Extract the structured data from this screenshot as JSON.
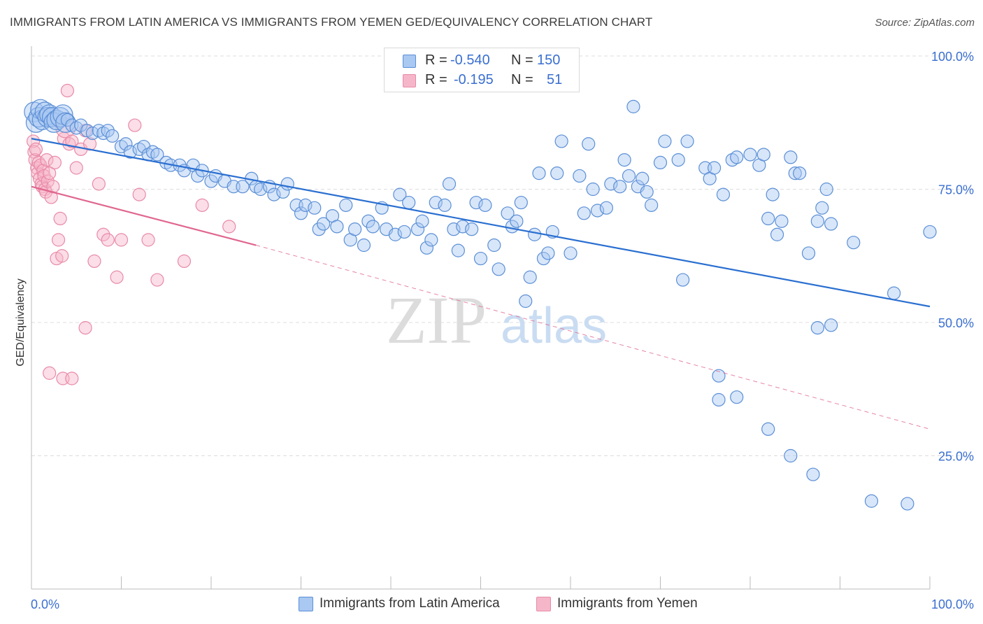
{
  "title": "IMMIGRANTS FROM LATIN AMERICA VS IMMIGRANTS FROM YEMEN GED/EQUIVALENCY CORRELATION CHART",
  "source": "Source: ZipAtlas.com",
  "watermark": {
    "zip": "ZIP",
    "atlas": "atlas"
  },
  "colors": {
    "blue_fill": "#a9c8f2",
    "blue_stroke": "#5b8fd6",
    "blue_line": "#2a6fd1",
    "pink_fill": "#f6b6ca",
    "pink_stroke": "#e98aa8",
    "pink_line": "#e0668e",
    "tick_label": "#3a6fd0",
    "grid": "#dddddd"
  },
  "legend": {
    "rows": [
      {
        "r_label": "R =",
        "r_value": "-0.540",
        "n_label": "N =",
        "n_value": "150"
      },
      {
        "r_label": "R =",
        "r_value": "-0.195",
        "n_label": "N =",
        "n_value": "51"
      }
    ]
  },
  "bottom_legend": [
    "Immigrants from Latin America",
    "Immigrants from Yemen"
  ],
  "chart_data": {
    "type": "scatter",
    "title": "IMMIGRANTS FROM LATIN AMERICA VS IMMIGRANTS FROM YEMEN GED/EQUIVALENCY CORRELATION CHART",
    "xlabel": "",
    "ylabel": "GED/Equivalency",
    "xlim": [
      0,
      100
    ],
    "ylim": [
      0,
      100
    ],
    "x_tick_labels": [
      "0.0%",
      "100.0%"
    ],
    "y_ticks": [
      25,
      50,
      75,
      100
    ],
    "y_tick_labels": [
      "25.0%",
      "50.0%",
      "75.0%",
      "100.0%"
    ],
    "grid": true,
    "legend_placement": "top-center",
    "series": [
      {
        "name": "Immigrants from Latin America",
        "color": "#a9c8f2",
        "r": -0.54,
        "n": 150,
        "trend": {
          "x": [
            0,
            100
          ],
          "y": [
            84.5,
            53.0
          ]
        },
        "points": [
          [
            0.3,
            89.5
          ],
          [
            0.5,
            87.5
          ],
          [
            0.8,
            88.5
          ],
          [
            1.0,
            90.0
          ],
          [
            1.2,
            88.0
          ],
          [
            1.5,
            89.5
          ],
          [
            1.8,
            88.5
          ],
          [
            2.0,
            89.0
          ],
          [
            2.3,
            88.5
          ],
          [
            2.5,
            87.5
          ],
          [
            2.8,
            88.0
          ],
          [
            3.2,
            88.5
          ],
          [
            3.5,
            89.0
          ],
          [
            3.8,
            87.5
          ],
          [
            4.0,
            88.0
          ],
          [
            4.5,
            87.0
          ],
          [
            5.0,
            86.5
          ],
          [
            5.5,
            87.0
          ],
          [
            6.2,
            86.0
          ],
          [
            6.8,
            85.5
          ],
          [
            7.5,
            86.0
          ],
          [
            8.0,
            85.5
          ],
          [
            8.5,
            86.0
          ],
          [
            9.0,
            85.0
          ],
          [
            10.0,
            83.0
          ],
          [
            10.5,
            83.5
          ],
          [
            11.0,
            82.0
          ],
          [
            12.0,
            82.5
          ],
          [
            12.5,
            83.0
          ],
          [
            13.0,
            81.5
          ],
          [
            13.5,
            82.0
          ],
          [
            14.0,
            81.5
          ],
          [
            15.0,
            80.0
          ],
          [
            15.5,
            79.5
          ],
          [
            16.5,
            79.5
          ],
          [
            17.0,
            78.5
          ],
          [
            18.0,
            79.5
          ],
          [
            18.5,
            77.5
          ],
          [
            19.0,
            78.5
          ],
          [
            20.0,
            76.5
          ],
          [
            20.5,
            77.5
          ],
          [
            21.5,
            76.5
          ],
          [
            22.5,
            75.5
          ],
          [
            23.5,
            75.5
          ],
          [
            24.5,
            77.0
          ],
          [
            25.0,
            75.5
          ],
          [
            25.5,
            75.0
          ],
          [
            26.5,
            75.5
          ],
          [
            27.0,
            74.0
          ],
          [
            28.0,
            74.5
          ],
          [
            28.5,
            76.0
          ],
          [
            29.5,
            72.0
          ],
          [
            30.0,
            70.5
          ],
          [
            30.5,
            72.0
          ],
          [
            31.5,
            71.5
          ],
          [
            32.0,
            67.5
          ],
          [
            32.5,
            68.5
          ],
          [
            33.5,
            70.0
          ],
          [
            34.0,
            68.0
          ],
          [
            35.0,
            72.0
          ],
          [
            35.5,
            65.5
          ],
          [
            36.0,
            67.5
          ],
          [
            37.0,
            64.5
          ],
          [
            37.5,
            69.0
          ],
          [
            38.0,
            68.0
          ],
          [
            39.0,
            71.5
          ],
          [
            39.5,
            67.5
          ],
          [
            40.5,
            66.5
          ],
          [
            41.0,
            74.0
          ],
          [
            41.5,
            67.0
          ],
          [
            42.0,
            72.5
          ],
          [
            43.0,
            67.5
          ],
          [
            43.5,
            69.0
          ],
          [
            44.0,
            64.0
          ],
          [
            44.5,
            65.5
          ],
          [
            45.0,
            72.5
          ],
          [
            46.0,
            72.0
          ],
          [
            46.5,
            76.0
          ],
          [
            47.0,
            67.5
          ],
          [
            47.5,
            63.5
          ],
          [
            48.0,
            68.0
          ],
          [
            49.0,
            67.5
          ],
          [
            49.5,
            72.5
          ],
          [
            50.0,
            62.0
          ],
          [
            50.5,
            72.0
          ],
          [
            51.5,
            64.5
          ],
          [
            52.0,
            60.0
          ],
          [
            53.0,
            70.5
          ],
          [
            53.5,
            68.0
          ],
          [
            54.0,
            69.0
          ],
          [
            54.5,
            72.5
          ],
          [
            55.0,
            54.0
          ],
          [
            55.5,
            58.5
          ],
          [
            56.0,
            66.5
          ],
          [
            56.5,
            78.0
          ],
          [
            57.0,
            62.0
          ],
          [
            57.5,
            63.0
          ],
          [
            58.0,
            67.0
          ],
          [
            58.5,
            78.0
          ],
          [
            59.0,
            84.0
          ],
          [
            60.0,
            63.0
          ],
          [
            61.0,
            77.5
          ],
          [
            61.5,
            70.5
          ],
          [
            62.0,
            83.5
          ],
          [
            62.5,
            75.0
          ],
          [
            63.0,
            71.0
          ],
          [
            64.0,
            71.5
          ],
          [
            64.5,
            76.0
          ],
          [
            65.5,
            75.5
          ],
          [
            66.0,
            80.5
          ],
          [
            66.5,
            77.5
          ],
          [
            67.0,
            90.5
          ],
          [
            67.5,
            75.5
          ],
          [
            68.0,
            77.0
          ],
          [
            68.5,
            74.5
          ],
          [
            69.0,
            72.0
          ],
          [
            70.0,
            80.0
          ],
          [
            70.5,
            84.0
          ],
          [
            72.0,
            80.5
          ],
          [
            72.5,
            58.0
          ],
          [
            73.0,
            84.0
          ],
          [
            75.0,
            79.0
          ],
          [
            75.5,
            77.0
          ],
          [
            76.0,
            79.0
          ],
          [
            77.0,
            74.0
          ],
          [
            78.0,
            80.5
          ],
          [
            78.5,
            81.0
          ],
          [
            80.0,
            81.5
          ],
          [
            81.0,
            79.5
          ],
          [
            81.5,
            81.5
          ],
          [
            82.0,
            69.5
          ],
          [
            82.5,
            74.0
          ],
          [
            83.0,
            66.5
          ],
          [
            83.5,
            69.0
          ],
          [
            84.5,
            81.0
          ],
          [
            85.0,
            78.0
          ],
          [
            85.5,
            78.0
          ],
          [
            86.5,
            63.0
          ],
          [
            87.5,
            69.0
          ],
          [
            88.0,
            71.5
          ],
          [
            88.5,
            75.0
          ],
          [
            89.0,
            68.5
          ],
          [
            91.5,
            65.0
          ],
          [
            96.0,
            55.5
          ],
          [
            100.0,
            67.0
          ],
          [
            76.5,
            40.0
          ],
          [
            76.5,
            35.5
          ],
          [
            78.5,
            36.0
          ],
          [
            82.0,
            30.0
          ],
          [
            84.5,
            25.0
          ],
          [
            87.0,
            21.5
          ],
          [
            87.5,
            49.0
          ],
          [
            89.0,
            49.5
          ],
          [
            93.5,
            16.5
          ],
          [
            97.5,
            16.0
          ]
        ]
      },
      {
        "name": "Immigrants from Yemen",
        "color": "#f6b6ca",
        "r": -0.195,
        "n": 51,
        "trend": {
          "x": [
            0,
            25
          ],
          "y": [
            75.5,
            64.5
          ]
        },
        "trend_extended": {
          "x": [
            25,
            100
          ],
          "y": [
            64.5,
            30.0
          ]
        },
        "points": [
          [
            0.2,
            84.0
          ],
          [
            0.3,
            82.0
          ],
          [
            0.4,
            80.5
          ],
          [
            0.5,
            82.5
          ],
          [
            0.6,
            79.0
          ],
          [
            0.7,
            78.0
          ],
          [
            0.8,
            80.0
          ],
          [
            0.9,
            77.0
          ],
          [
            1.0,
            79.5
          ],
          [
            1.1,
            76.0
          ],
          [
            1.2,
            75.5
          ],
          [
            1.3,
            78.5
          ],
          [
            1.4,
            77.5
          ],
          [
            1.5,
            75.0
          ],
          [
            1.6,
            74.5
          ],
          [
            1.7,
            80.5
          ],
          [
            1.8,
            76.5
          ],
          [
            2.0,
            78.0
          ],
          [
            2.2,
            73.5
          ],
          [
            2.4,
            75.5
          ],
          [
            2.6,
            80.0
          ],
          [
            2.8,
            62.0
          ],
          [
            3.0,
            65.5
          ],
          [
            3.2,
            69.5
          ],
          [
            3.4,
            62.5
          ],
          [
            3.6,
            84.5
          ],
          [
            3.8,
            86.5
          ],
          [
            4.0,
            93.5
          ],
          [
            4.2,
            83.5
          ],
          [
            4.5,
            84.0
          ],
          [
            5.0,
            79.0
          ],
          [
            5.5,
            82.5
          ],
          [
            6.0,
            86.0
          ],
          [
            6.5,
            83.5
          ],
          [
            7.0,
            61.5
          ],
          [
            7.5,
            76.0
          ],
          [
            8.0,
            66.5
          ],
          [
            8.5,
            65.5
          ],
          [
            9.5,
            58.5
          ],
          [
            10.0,
            65.5
          ],
          [
            11.5,
            87.0
          ],
          [
            12.0,
            74.0
          ],
          [
            13.0,
            65.5
          ],
          [
            14.0,
            58.0
          ],
          [
            17.0,
            61.5
          ],
          [
            19.0,
            72.0
          ],
          [
            22.0,
            68.0
          ],
          [
            2.0,
            40.5
          ],
          [
            3.5,
            39.5
          ],
          [
            4.5,
            39.5
          ],
          [
            6.0,
            49.0
          ]
        ]
      }
    ]
  }
}
